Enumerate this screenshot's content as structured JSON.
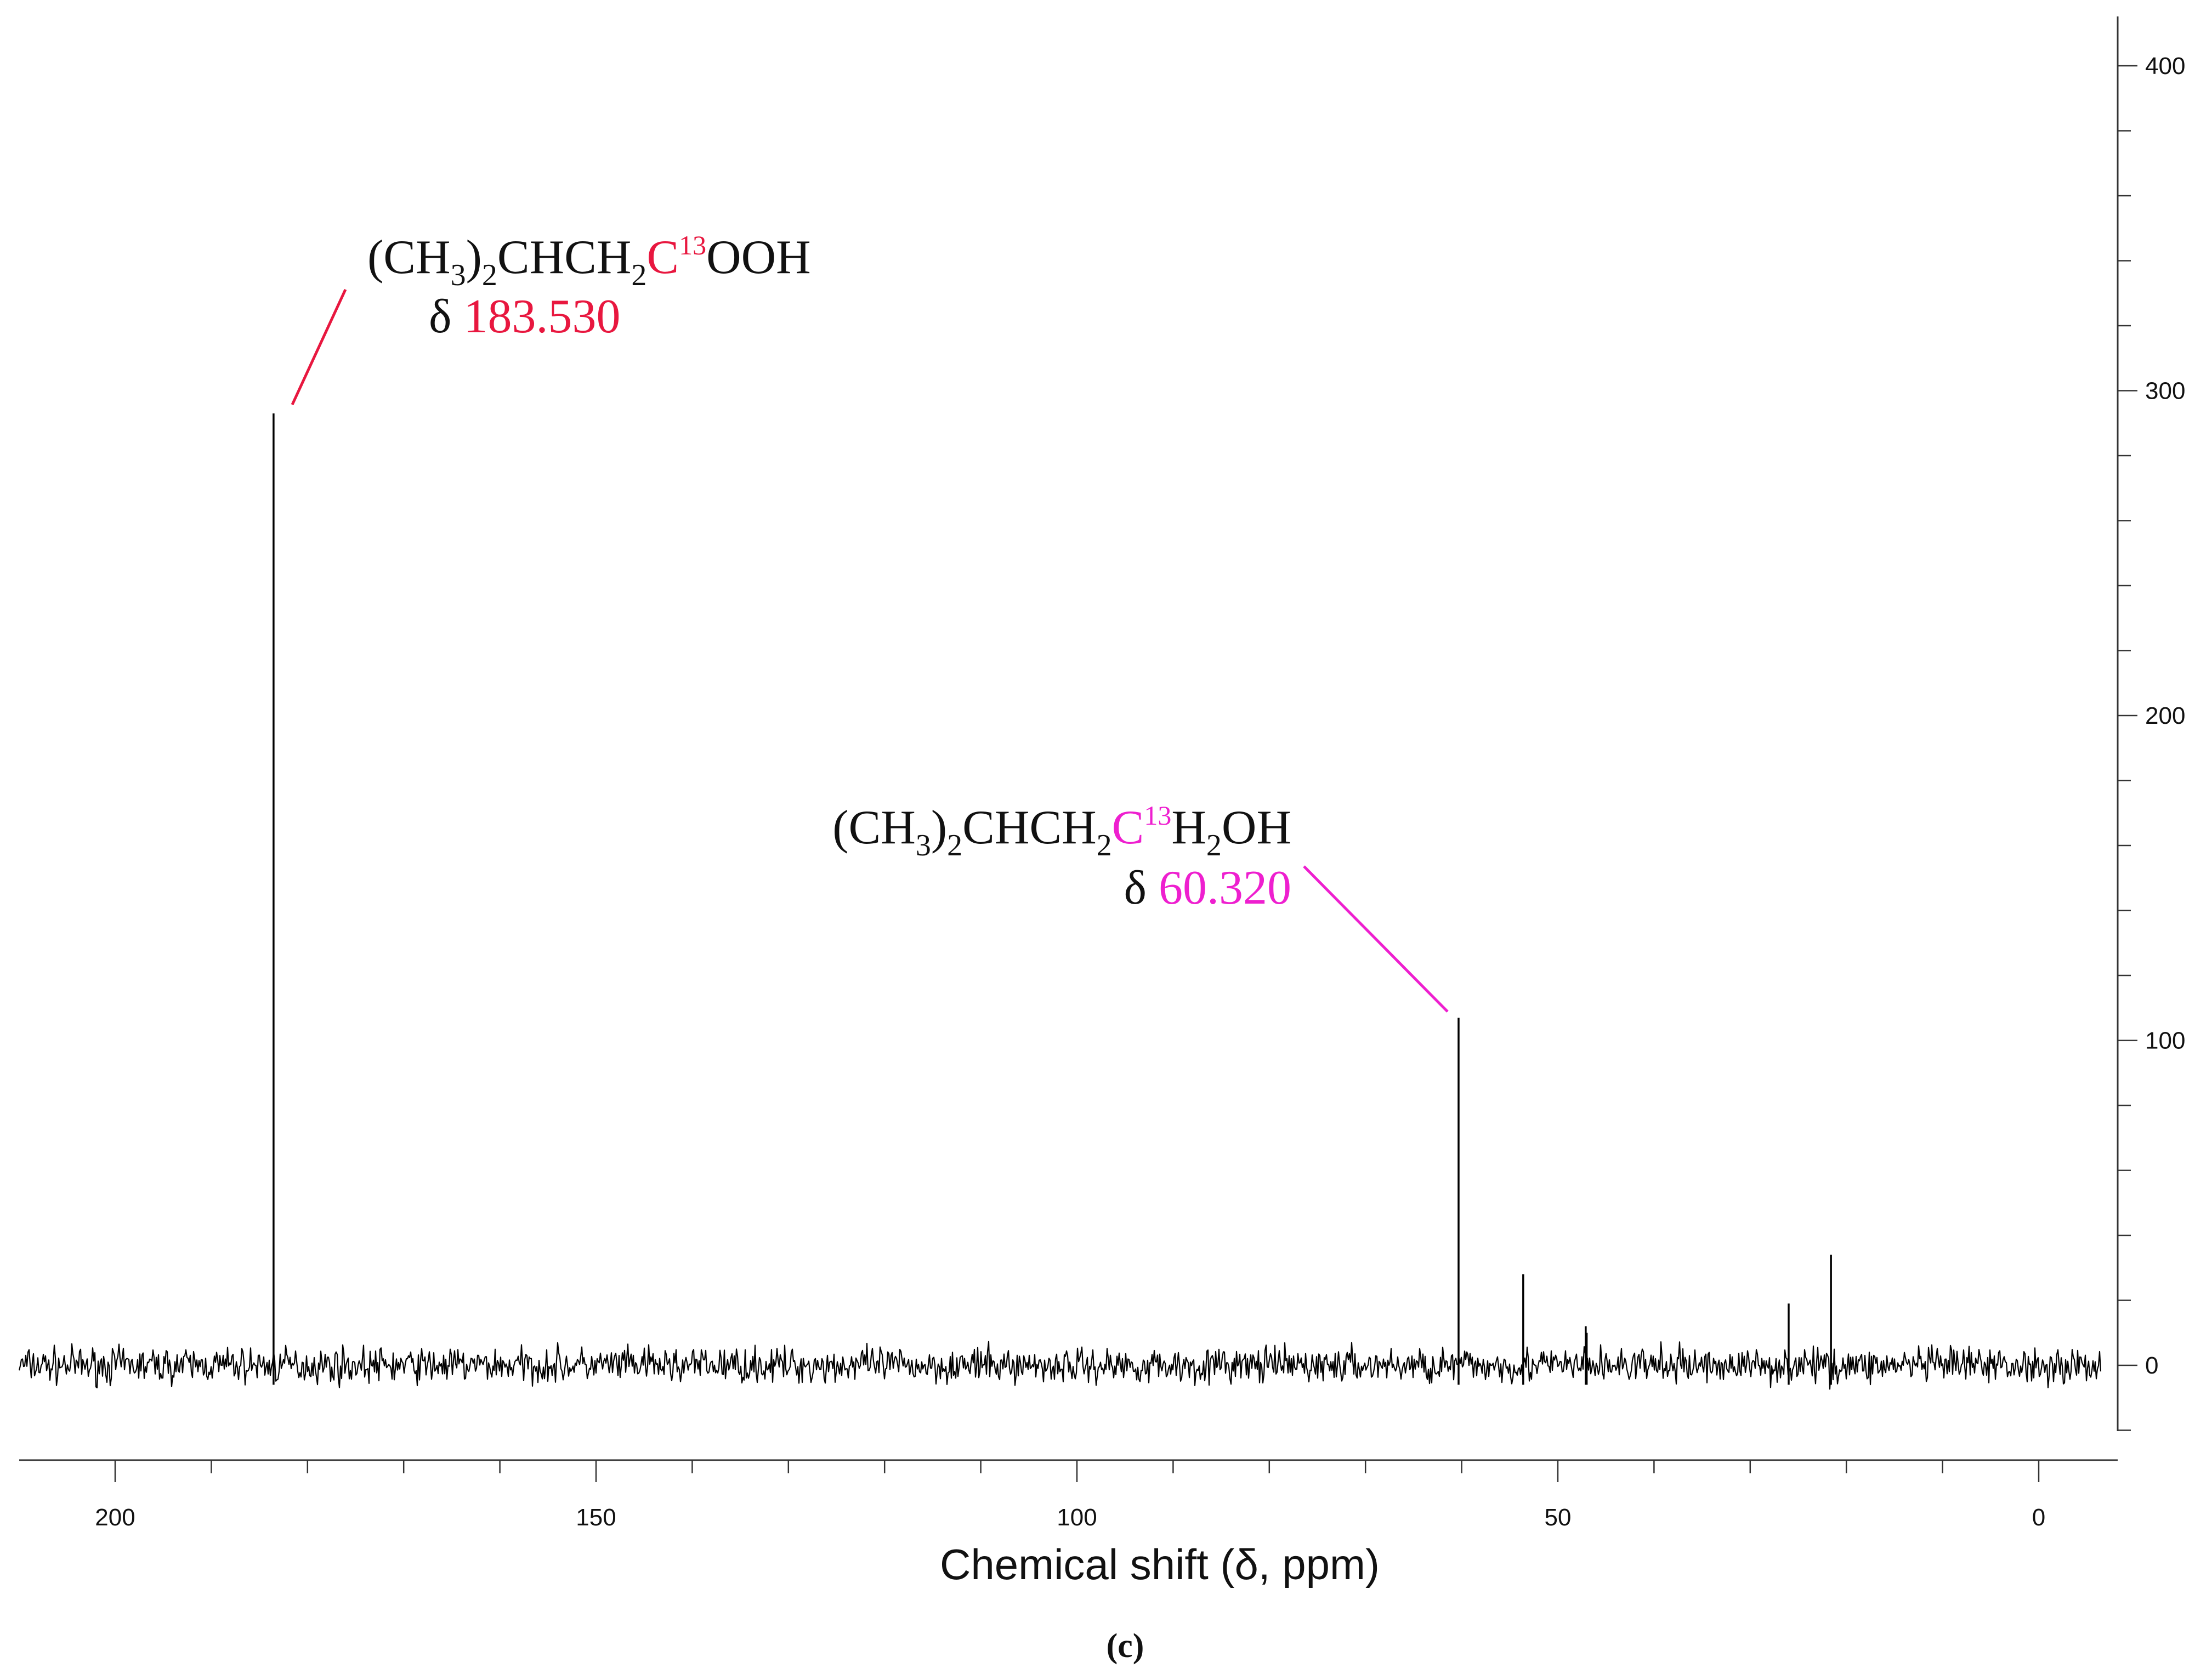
{
  "chart_data": {
    "type": "line",
    "title": "",
    "xlabel": "Chemical shift (δ, ppm)",
    "ylabel": "",
    "xlim": [
      210,
      -7
    ],
    "ylim": [
      -22,
      412
    ],
    "x_ticks": [
      "200",
      "150",
      "100",
      "50",
      "0"
    ],
    "y_ticks": [
      "400",
      "300",
      "200",
      "100",
      "0"
    ],
    "grid": false,
    "legend": "none",
    "panel_label": {
      "open": "(",
      "letter": "c",
      "close": ")"
    },
    "series": [
      {
        "values_note_free": true,
        "peaks": [
          {
            "x": 183.53,
            "y": 293
          },
          {
            "x": 60.32,
            "y": 107
          },
          {
            "x": 53.6,
            "y": 28
          },
          {
            "x": 47.1,
            "y": 12
          },
          {
            "x": 47.0,
            "y": 10
          },
          {
            "x": 26.0,
            "y": 19
          },
          {
            "x": 21.6,
            "y": 34
          }
        ],
        "noise_amplitude": 5
      }
    ],
    "annotations": [
      {
        "formula": {
          "p1": "(CH",
          "s1": "3",
          "p2": ")",
          "s2": "2",
          "p3": "CHCH",
          "s3": "2",
          "hl": "C",
          "sup": "13",
          "p4": "OOH",
          "s4": "",
          "p5": ""
        },
        "delta_symbol": "δ",
        "delta_value": "183.530",
        "color": "#e8173f",
        "peak_x": 183.53
      },
      {
        "formula": {
          "p1": "(CH",
          "s1": "3",
          "p2": ")",
          "s2": "2",
          "p3": "CHCH",
          "s3": "2",
          "hl": "C",
          "sup": "13",
          "p4": "H",
          "s4": "2",
          "p5": "OH"
        },
        "delta_symbol": "δ",
        "delta_value": "60.320",
        "color": "#ee1fcf",
        "peak_x": 60.32
      }
    ]
  },
  "colors": {
    "trace": "#000000",
    "axis": "#333333",
    "label_red": "#e8173f",
    "label_magenta": "#ee1fcf"
  }
}
